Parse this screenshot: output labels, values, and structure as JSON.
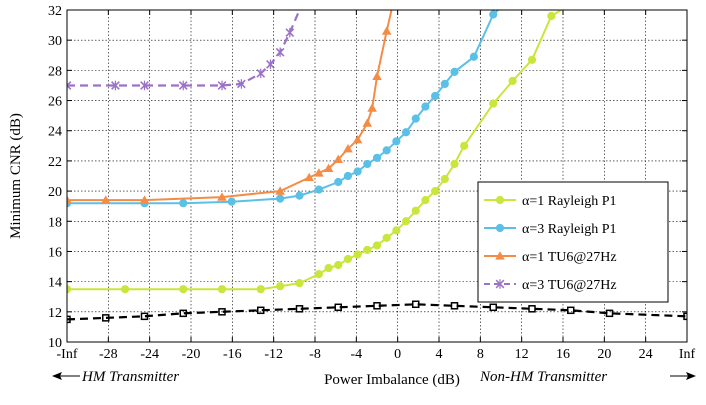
{
  "chart_data": {
    "type": "line",
    "xlabel": "Power Imbalance (dB)",
    "ylabel": "Minimum CNR (dB)",
    "x_tick_labels": [
      "-Inf",
      "-28",
      "-24",
      "-20",
      "-16",
      "-12",
      "-8",
      "-4",
      "0",
      "4",
      "8",
      "12",
      "16",
      "20",
      "24",
      "Inf"
    ],
    "y_ticks": [
      10,
      12,
      14,
      16,
      18,
      20,
      22,
      24,
      26,
      28,
      30,
      32
    ],
    "ylim": [
      10,
      32
    ],
    "xlim": [
      -32,
      32
    ],
    "inf_positions": {
      "neg": -32,
      "pos": 32
    },
    "grid": true,
    "legend_position": "right",
    "annotations": {
      "left": "HM Transmitter",
      "right": "Non-HM Transmitter"
    },
    "colors": {
      "rayleigh_a1": "#c8e63c",
      "rayleigh_a3": "#5bc0e6",
      "tu6_a1": "#f58c46",
      "tu6_a3": "#9b72c8",
      "reference": "#000000"
    },
    "series": [
      {
        "name": "α=1 Rayleigh P1",
        "color_key": "rayleigh_a1",
        "marker": "circle",
        "dashed": false,
        "in_legend": true,
        "points": [
          [
            -32,
            13.5
          ],
          [
            -26,
            13.5
          ],
          [
            -20,
            13.5
          ],
          [
            -16,
            13.5
          ],
          [
            -12,
            13.5
          ],
          [
            -10,
            13.7
          ],
          [
            -8,
            13.9
          ],
          [
            -6,
            14.5
          ],
          [
            -5,
            14.9
          ],
          [
            -4,
            15.1
          ],
          [
            -3,
            15.5
          ],
          [
            -2,
            15.8
          ],
          [
            -1,
            16.1
          ],
          [
            0,
            16.4
          ],
          [
            1,
            16.9
          ],
          [
            2,
            17.4
          ],
          [
            3,
            18.0
          ],
          [
            4,
            18.7
          ],
          [
            5,
            19.4
          ],
          [
            6,
            20.0
          ],
          [
            7,
            20.8
          ],
          [
            8,
            21.8
          ],
          [
            9,
            23.0
          ],
          [
            12,
            25.8
          ],
          [
            14,
            27.3
          ],
          [
            16,
            28.7
          ],
          [
            18,
            31.6
          ],
          [
            19,
            32.0
          ]
        ]
      },
      {
        "name": "α=3 Rayleigh P1",
        "color_key": "rayleigh_a3",
        "marker": "circle",
        "dashed": false,
        "in_legend": true,
        "points": [
          [
            -32,
            19.2
          ],
          [
            -24,
            19.2
          ],
          [
            -20,
            19.2
          ],
          [
            -15,
            19.3
          ],
          [
            -10,
            19.5
          ],
          [
            -8,
            19.7
          ],
          [
            -6,
            20.1
          ],
          [
            -4,
            20.6
          ],
          [
            -3,
            21.0
          ],
          [
            -2,
            21.3
          ],
          [
            -1,
            21.8
          ],
          [
            0,
            22.2
          ],
          [
            1,
            22.7
          ],
          [
            2,
            23.3
          ],
          [
            3,
            23.9
          ],
          [
            4,
            24.8
          ],
          [
            5,
            25.6
          ],
          [
            6,
            26.3
          ],
          [
            7,
            27.1
          ],
          [
            8,
            27.9
          ],
          [
            10,
            28.9
          ],
          [
            12,
            31.7
          ],
          [
            12.5,
            32.0
          ]
        ]
      },
      {
        "name": "α=1 TU6@27Hz",
        "color_key": "tu6_a1",
        "marker": "triangle",
        "dashed": false,
        "in_legend": true,
        "points": [
          [
            -32,
            19.4
          ],
          [
            -28,
            19.4
          ],
          [
            -24,
            19.4
          ],
          [
            -16,
            19.6
          ],
          [
            -10,
            20.0
          ],
          [
            -7,
            20.9
          ],
          [
            -6,
            21.2
          ],
          [
            -5,
            21.5
          ],
          [
            -4,
            22.1
          ],
          [
            -3,
            22.8
          ],
          [
            -2,
            23.4
          ],
          [
            -1,
            24.5
          ],
          [
            -0.5,
            25.5
          ],
          [
            0,
            27.6
          ],
          [
            1,
            30.6
          ],
          [
            1.5,
            32.0
          ]
        ]
      },
      {
        "name": "α=3 TU6@27Hz",
        "color_key": "tu6_a3",
        "marker": "star",
        "dashed": true,
        "in_legend": true,
        "points": [
          [
            -32,
            27.0
          ],
          [
            -27,
            27.0
          ],
          [
            -24,
            27.0
          ],
          [
            -20,
            27.0
          ],
          [
            -16,
            27.0
          ],
          [
            -14,
            27.1
          ],
          [
            -12,
            27.8
          ],
          [
            -11,
            28.4
          ],
          [
            -10,
            29.2
          ],
          [
            -9,
            30.5
          ],
          [
            -8,
            32.0
          ]
        ]
      },
      {
        "name": "",
        "color_key": "reference",
        "marker": "square-open",
        "dashed": true,
        "in_legend": false,
        "points": [
          [
            -32,
            11.5
          ],
          [
            -28,
            11.6
          ],
          [
            -24,
            11.7
          ],
          [
            -20,
            11.9
          ],
          [
            -16,
            12.0
          ],
          [
            -12,
            12.1
          ],
          [
            -8,
            12.2
          ],
          [
            -4,
            12.3
          ],
          [
            0,
            12.4
          ],
          [
            4,
            12.5
          ],
          [
            8,
            12.4
          ],
          [
            12,
            12.3
          ],
          [
            16,
            12.2
          ],
          [
            20,
            12.1
          ],
          [
            24,
            11.9
          ],
          [
            32,
            11.7
          ]
        ]
      }
    ]
  }
}
